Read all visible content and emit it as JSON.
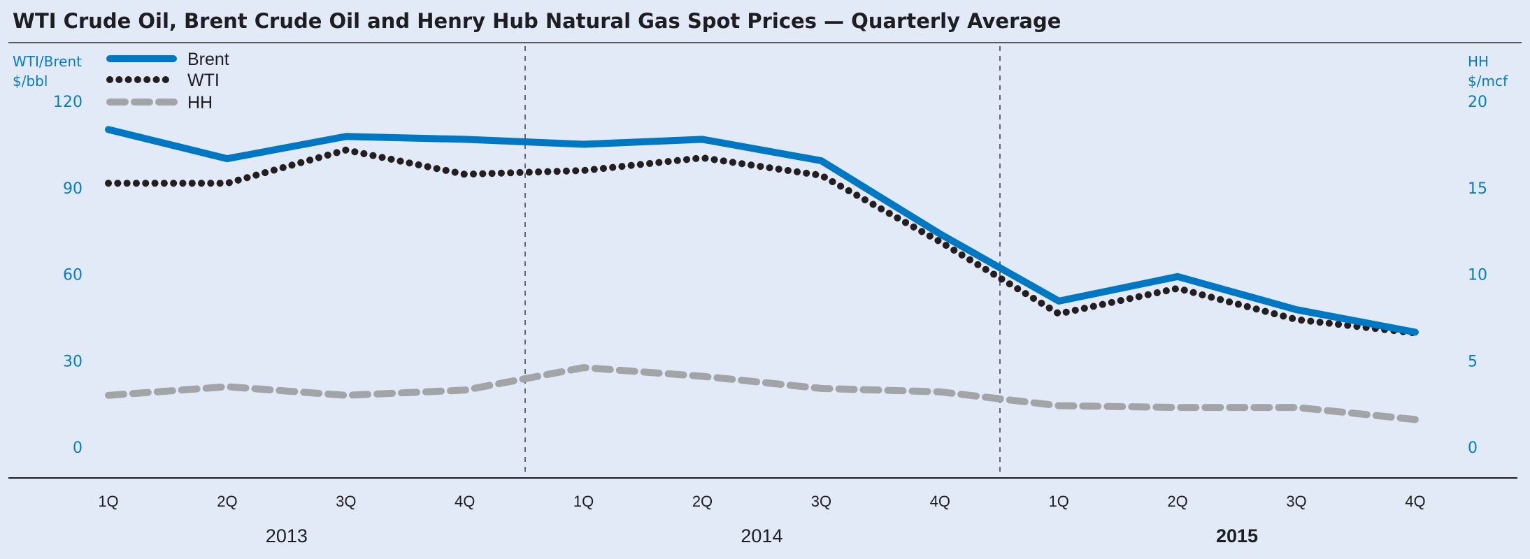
{
  "chart_data": {
    "type": "line",
    "title": "WTI Crude Oil, Brent Crude Oil and Henry Hub Natural Gas Spot Prices — Quarterly Average",
    "left_axis": {
      "label_line1": "WTI/Brent",
      "label_line2": "$/bbl",
      "ylim": [
        0,
        120
      ],
      "ticks": [
        0,
        30,
        60,
        90,
        120
      ]
    },
    "right_axis": {
      "label_line1": "HH",
      "label_line2": "$/mcf",
      "ylim": [
        0,
        20
      ],
      "ticks": [
        0,
        5,
        10,
        15,
        20
      ]
    },
    "x": [
      "1Q",
      "2Q",
      "3Q",
      "4Q",
      "1Q",
      "2Q",
      "3Q",
      "4Q",
      "1Q",
      "2Q",
      "3Q",
      "4Q"
    ],
    "years": [
      {
        "label": "2013",
        "bold": false
      },
      {
        "label": "2014",
        "bold": false
      },
      {
        "label": "2015",
        "bold": true
      }
    ],
    "grid": false,
    "legend_position": "top-left",
    "series": [
      {
        "name": "Brent",
        "axis": "left",
        "style": "solid",
        "color": "#0077c2",
        "values": [
          110.2,
          100.1,
          107.8,
          106.8,
          105.1,
          106.8,
          99.4,
          74.0,
          50.7,
          59.2,
          47.7,
          39.9
        ]
      },
      {
        "name": "WTI",
        "axis": "left",
        "style": "dotted",
        "color": "#231f20",
        "values": [
          91.6,
          91.6,
          103.1,
          94.7,
          96.0,
          100.4,
          94.3,
          71.3,
          46.3,
          55.1,
          44.3,
          39.6
        ]
      },
      {
        "name": "HH",
        "axis": "right",
        "style": "dashed",
        "color": "#a2a4a8",
        "values": [
          3.0,
          3.5,
          3.0,
          3.3,
          4.6,
          4.1,
          3.4,
          3.2,
          2.4,
          2.3,
          2.3,
          1.6
        ]
      }
    ]
  }
}
